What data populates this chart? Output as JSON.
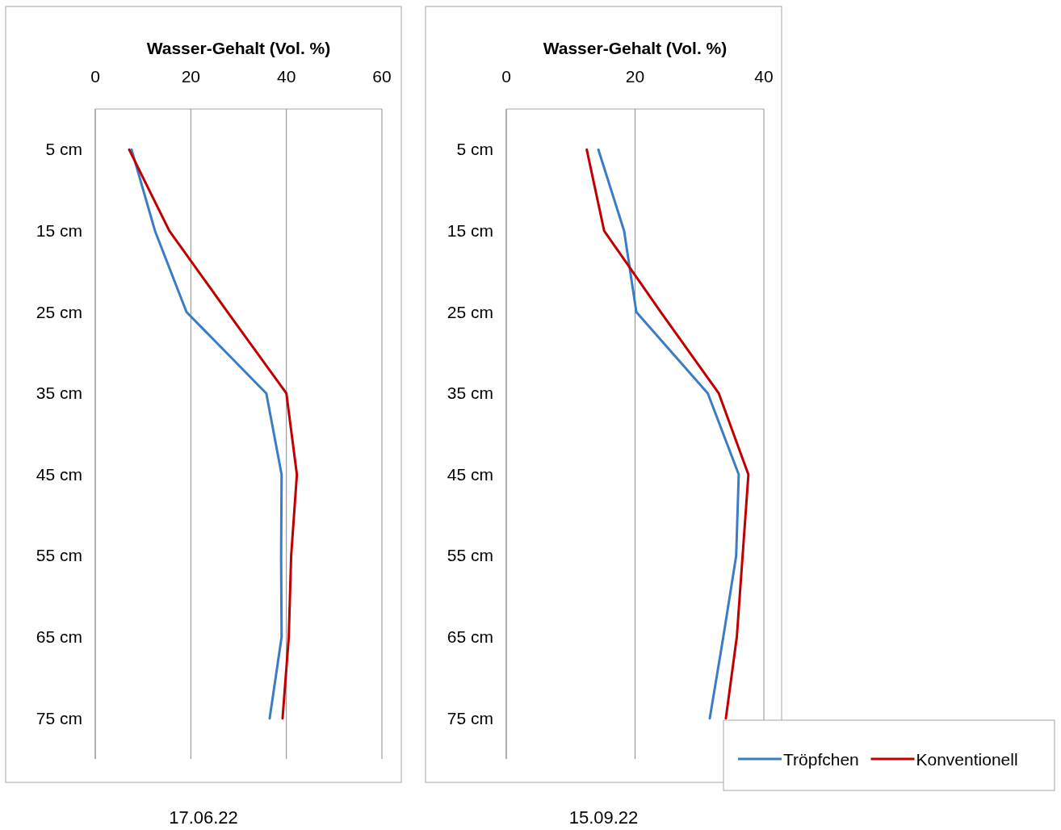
{
  "chart_data": [
    {
      "type": "line",
      "orientation": "horizontal",
      "title": "17.06.22",
      "xlabel": "Wasser-Gehalt (Vol. %)",
      "categories": [
        "5 cm",
        "15 cm",
        "25 cm",
        "35 cm",
        "45 cm",
        "55 cm",
        "65 cm",
        "75 cm"
      ],
      "xlim": [
        0,
        60
      ],
      "xticks": [
        0,
        20,
        40,
        60
      ],
      "grid": "x",
      "legend": false,
      "series": [
        {
          "color": "#3b7dc4",
          "values": [
            7.6,
            12.5,
            19.1,
            35.8,
            39,
            38.9,
            39,
            36.5
          ]
        },
        {
          "color": "#c00000",
          "values": [
            7.1,
            15.5,
            27.7,
            40,
            42.2,
            41,
            40.5,
            39.2
          ]
        }
      ]
    },
    {
      "type": "line",
      "orientation": "horizontal",
      "title": "15.09.22",
      "xlabel": "Wasser-Gehalt (Vol. %)",
      "categories": [
        "5 cm",
        "15 cm",
        "25 cm",
        "35 cm",
        "45 cm",
        "55 cm",
        "65 cm",
        "75 cm"
      ],
      "xlim": [
        0,
        40
      ],
      "xticks": [
        0,
        20,
        40
      ],
      "grid": "x",
      "legend": "bottom right",
      "series": [
        {
          "name": "Tröpfchen",
          "color": "#3b7dc4",
          "values": [
            14.3,
            18.3,
            20.2,
            31.3,
            36.1,
            35.7,
            33.7,
            31.6
          ]
        },
        {
          "name": "Konventionell",
          "color": "#c00000",
          "values": [
            12.5,
            15.2,
            24,
            33,
            37.6,
            36.7,
            35.8,
            34.1
          ]
        }
      ]
    }
  ]
}
